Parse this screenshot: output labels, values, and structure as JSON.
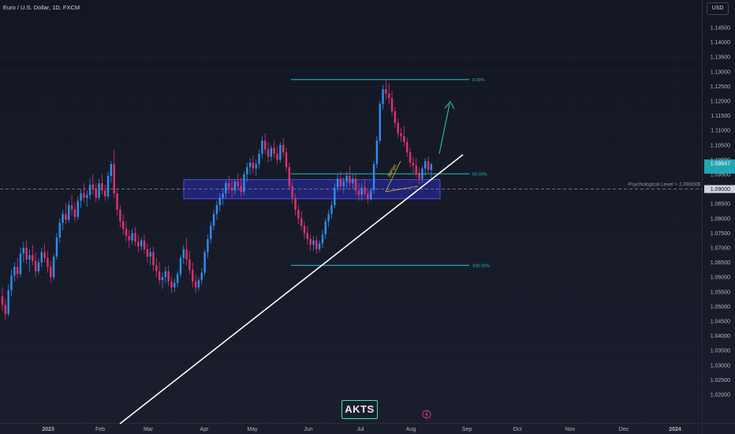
{
  "title": "Euro / U.S. Dollar, 1D, FXCM",
  "currency_button": "USD",
  "logo_text": "AKTS",
  "chart_data": {
    "type": "candlestick",
    "symbol": "EURUSD",
    "timeframe": "1D",
    "x_labels": [
      "2023",
      "Feb",
      "Mar",
      "Apr",
      "May",
      "Jun",
      "Jul",
      "Aug",
      "Sep",
      "Oct",
      "Nov",
      "Dec",
      "2024"
    ],
    "y_ticks": [
      "1.14500",
      "1.14000",
      "1.13500",
      "1.13000",
      "1.12500",
      "1.12000",
      "1.11500",
      "1.11000",
      "1.10500",
      "1.10000",
      "1.09500",
      "1.09000",
      "1.08500",
      "1.08000",
      "1.07500",
      "1.07000",
      "1.06500",
      "1.06000",
      "1.05500",
      "1.05000",
      "1.04500",
      "1.04000",
      "1.03500",
      "1.03000",
      "1.02500",
      "1.02000"
    ],
    "ylim": [
      1.0185,
      1.1495
    ],
    "up_color": "#2f8ef0",
    "down_color": "#e0336e",
    "price_labels": [
      "1.09847",
      "1.09000"
    ],
    "fib_labels": [
      "0.00%",
      "50.00%",
      "100.00%"
    ],
    "fib_levels": [
      1.1273,
      1.0952,
      1.064
    ],
    "support_zone": {
      "from": 1.091,
      "to": 1.0932
    },
    "psychological_label": "Psychological Level  > 1.09000$",
    "psychological_level": 1.09,
    "trendline": {
      "from": [
        1.018,
        0.0
      ],
      "to": [
        1.1035,
        1.0
      ]
    },
    "annotation": "30Pips",
    "candles": [
      [
        1.0535,
        1.0565,
        1.0485,
        1.0505
      ],
      [
        1.0505,
        1.0525,
        1.0455,
        1.0475
      ],
      [
        1.0475,
        1.0575,
        1.0465,
        1.0555
      ],
      [
        1.0555,
        1.0625,
        1.0535,
        1.0605
      ],
      [
        1.0605,
        1.065,
        1.0585,
        1.0635
      ],
      [
        1.0635,
        1.0665,
        1.0595,
        1.061
      ],
      [
        1.061,
        1.07,
        1.06,
        1.068
      ],
      [
        1.068,
        1.072,
        1.065,
        1.07
      ],
      [
        1.07,
        1.0725,
        1.0645,
        1.066
      ],
      [
        1.066,
        1.0695,
        1.062,
        1.0675
      ],
      [
        1.0675,
        1.071,
        1.064,
        1.0655
      ],
      [
        1.0655,
        1.0685,
        1.06,
        1.062
      ],
      [
        1.062,
        1.0665,
        1.061,
        1.065
      ],
      [
        1.065,
        1.07,
        1.0635,
        1.0685
      ],
      [
        1.0685,
        1.0715,
        1.065,
        1.0665
      ],
      [
        1.0665,
        1.069,
        1.0615,
        1.0635
      ],
      [
        1.0635,
        1.0655,
        1.058,
        1.06
      ],
      [
        1.06,
        1.068,
        1.059,
        1.067
      ],
      [
        1.067,
        1.075,
        1.066,
        1.0735
      ],
      [
        1.0735,
        1.08,
        1.0715,
        1.0785
      ],
      [
        1.0785,
        1.083,
        1.076,
        1.0815
      ],
      [
        1.0815,
        1.085,
        1.078,
        1.0795
      ],
      [
        1.0795,
        1.086,
        1.0785,
        1.0845
      ],
      [
        1.0845,
        1.088,
        1.081,
        1.083
      ],
      [
        1.083,
        1.0855,
        1.079,
        1.0805
      ],
      [
        1.0805,
        1.0875,
        1.0795,
        1.086
      ],
      [
        1.086,
        1.09,
        1.0835,
        1.0885
      ],
      [
        1.0885,
        1.092,
        1.0855,
        1.087
      ],
      [
        1.087,
        1.0895,
        1.084,
        1.088
      ],
      [
        1.088,
        1.0935,
        1.0865,
        1.0915
      ],
      [
        1.0915,
        1.095,
        1.088,
        1.09
      ],
      [
        1.09,
        1.092,
        1.0855,
        1.087
      ],
      [
        1.087,
        1.0935,
        1.086,
        1.092
      ],
      [
        1.092,
        1.095,
        1.088,
        1.0895
      ],
      [
        1.0895,
        1.0915,
        1.086,
        1.0875
      ],
      [
        1.0875,
        1.096,
        1.0865,
        1.0945
      ],
      [
        1.0945,
        1.0995,
        1.092,
        1.0985
      ],
      [
        1.0985,
        1.1035,
        1.087,
        1.0885
      ],
      [
        1.0885,
        1.09,
        1.081,
        1.083
      ],
      [
        1.083,
        1.0845,
        1.077,
        1.079
      ],
      [
        1.079,
        1.0815,
        1.0745,
        1.0765
      ],
      [
        1.0765,
        1.079,
        1.072,
        1.074
      ],
      [
        1.074,
        1.076,
        1.07,
        1.0725
      ],
      [
        1.0725,
        1.0765,
        1.071,
        1.075
      ],
      [
        1.075,
        1.077,
        1.0705,
        1.072
      ],
      [
        1.072,
        1.0745,
        1.0685,
        1.0705
      ],
      [
        1.0705,
        1.0735,
        1.069,
        1.0725
      ],
      [
        1.0725,
        1.0745,
        1.068,
        1.0695
      ],
      [
        1.0695,
        1.0715,
        1.065,
        1.067
      ],
      [
        1.067,
        1.07,
        1.064,
        1.0685
      ],
      [
        1.0685,
        1.0705,
        1.062,
        1.064
      ],
      [
        1.064,
        1.0665,
        1.06,
        1.062
      ],
      [
        1.062,
        1.065,
        1.0575,
        1.059
      ],
      [
        1.059,
        1.0615,
        1.056,
        1.06
      ],
      [
        1.06,
        1.0635,
        1.058,
        1.062
      ],
      [
        1.062,
        1.064,
        1.057,
        1.0585
      ],
      [
        1.0585,
        1.06,
        1.0545,
        1.0565
      ],
      [
        1.0565,
        1.0595,
        1.055,
        1.058
      ],
      [
        1.058,
        1.062,
        1.0565,
        1.061
      ],
      [
        1.061,
        1.0675,
        1.06,
        1.0665
      ],
      [
        1.0665,
        1.071,
        1.0645,
        1.0695
      ],
      [
        1.0695,
        1.0735,
        1.064,
        1.066
      ],
      [
        1.066,
        1.069,
        1.061,
        1.0625
      ],
      [
        1.0625,
        1.065,
        1.0565,
        1.0585
      ],
      [
        1.0585,
        1.061,
        1.0545,
        1.0565
      ],
      [
        1.0565,
        1.06,
        1.0555,
        1.059
      ],
      [
        1.059,
        1.063,
        1.0575,
        1.0615
      ],
      [
        1.0615,
        1.0695,
        1.0605,
        1.0685
      ],
      [
        1.0685,
        1.0745,
        1.0665,
        1.073
      ],
      [
        1.073,
        1.079,
        1.0715,
        1.0775
      ],
      [
        1.0775,
        1.083,
        1.076,
        1.0815
      ],
      [
        1.0815,
        1.086,
        1.0795,
        1.0845
      ],
      [
        1.0845,
        1.0885,
        1.0825,
        1.087
      ],
      [
        1.087,
        1.09,
        1.0845,
        1.0885
      ],
      [
        1.0885,
        1.093,
        1.087,
        1.092
      ],
      [
        1.092,
        1.0945,
        1.0885,
        1.0905
      ],
      [
        1.0905,
        1.093,
        1.087,
        1.0895
      ],
      [
        1.0895,
        1.0935,
        1.088,
        1.0925
      ],
      [
        1.0925,
        1.0955,
        1.0895,
        1.091
      ],
      [
        1.091,
        1.094,
        1.0875,
        1.089
      ],
      [
        1.089,
        1.096,
        1.088,
        1.095
      ],
      [
        1.095,
        1.099,
        1.0925,
        1.0975
      ],
      [
        1.0975,
        1.1005,
        1.095,
        1.099
      ],
      [
        1.099,
        1.1015,
        1.0955,
        1.097
      ],
      [
        1.097,
        1.1,
        1.0945,
        1.0985
      ],
      [
        1.0985,
        1.1035,
        1.097,
        1.102
      ],
      [
        1.102,
        1.108,
        1.1005,
        1.1065
      ],
      [
        1.1065,
        1.109,
        1.102,
        1.1035
      ],
      [
        1.1035,
        1.106,
        1.099,
        1.101
      ],
      [
        1.101,
        1.105,
        1.0995,
        1.104
      ],
      [
        1.104,
        1.1065,
        1.1005,
        1.102
      ],
      [
        1.102,
        1.1045,
        1.0985,
        1.1
      ],
      [
        1.1,
        1.106,
        1.099,
        1.105
      ],
      [
        1.105,
        1.1075,
        1.101,
        1.1025
      ],
      [
        1.1025,
        1.104,
        1.096,
        1.0975
      ],
      [
        1.0975,
        1.099,
        1.0895,
        1.091
      ],
      [
        1.091,
        1.0925,
        1.085,
        1.087
      ],
      [
        1.087,
        1.0885,
        1.081,
        1.083
      ],
      [
        1.083,
        1.0845,
        1.078,
        1.08
      ],
      [
        1.08,
        1.0825,
        1.076,
        1.0775
      ],
      [
        1.0775,
        1.079,
        1.073,
        1.075
      ],
      [
        1.075,
        1.0775,
        1.071,
        1.073
      ],
      [
        1.073,
        1.0745,
        1.069,
        1.071
      ],
      [
        1.071,
        1.074,
        1.069,
        1.0725
      ],
      [
        1.0725,
        1.074,
        1.068,
        1.0695
      ],
      [
        1.0695,
        1.0725,
        1.0685,
        1.0715
      ],
      [
        1.0715,
        1.076,
        1.07,
        1.0745
      ],
      [
        1.0745,
        1.08,
        1.073,
        1.079
      ],
      [
        1.079,
        1.083,
        1.077,
        1.0815
      ],
      [
        1.0815,
        1.086,
        1.08,
        1.0845
      ],
      [
        1.0845,
        1.092,
        1.0835,
        1.0905
      ],
      [
        1.0905,
        1.095,
        1.089,
        1.0935
      ],
      [
        1.0935,
        1.096,
        1.0895,
        1.091
      ],
      [
        1.091,
        1.094,
        1.0885,
        1.0925
      ],
      [
        1.0925,
        1.096,
        1.09,
        1.0945
      ],
      [
        1.0945,
        1.098,
        1.0905,
        1.092
      ],
      [
        1.092,
        1.095,
        1.09,
        1.0935
      ],
      [
        1.0935,
        1.0955,
        1.088,
        1.0895
      ],
      [
        1.0895,
        1.092,
        1.086,
        1.088
      ],
      [
        1.088,
        1.092,
        1.086,
        1.0905
      ],
      [
        1.0905,
        1.0935,
        1.0875,
        1.0885
      ],
      [
        1.0885,
        1.09,
        1.085,
        1.0865
      ],
      [
        1.0865,
        1.0905,
        1.086,
        1.0895
      ],
      [
        1.0895,
        1.0995,
        1.0885,
        1.0985
      ],
      [
        1.0985,
        1.108,
        1.097,
        1.1065
      ],
      [
        1.1065,
        1.12,
        1.1055,
        1.119
      ],
      [
        1.119,
        1.1255,
        1.117,
        1.124
      ],
      [
        1.124,
        1.1275,
        1.1205,
        1.1225
      ],
      [
        1.1225,
        1.126,
        1.119,
        1.121
      ],
      [
        1.121,
        1.1235,
        1.115,
        1.1165
      ],
      [
        1.1165,
        1.118,
        1.111,
        1.1125
      ],
      [
        1.1125,
        1.114,
        1.1075,
        1.109
      ],
      [
        1.109,
        1.111,
        1.106,
        1.108
      ],
      [
        1.108,
        1.1115,
        1.1045,
        1.106
      ],
      [
        1.106,
        1.1075,
        1.101,
        1.1025
      ],
      [
        1.1025,
        1.104,
        1.0975,
        1.099
      ],
      [
        1.099,
        1.101,
        1.0955,
        1.098
      ],
      [
        1.098,
        1.1005,
        1.094,
        1.0955
      ],
      [
        1.0955,
        1.0975,
        1.0915,
        1.0935
      ],
      [
        1.0935,
        1.098,
        1.092,
        1.097
      ],
      [
        1.097,
        1.1005,
        1.0945,
        1.0995
      ],
      [
        1.0995,
        1.101,
        1.095,
        1.0965
      ],
      [
        1.0965,
        1.099,
        1.0935,
        1.0985
      ]
    ]
  }
}
